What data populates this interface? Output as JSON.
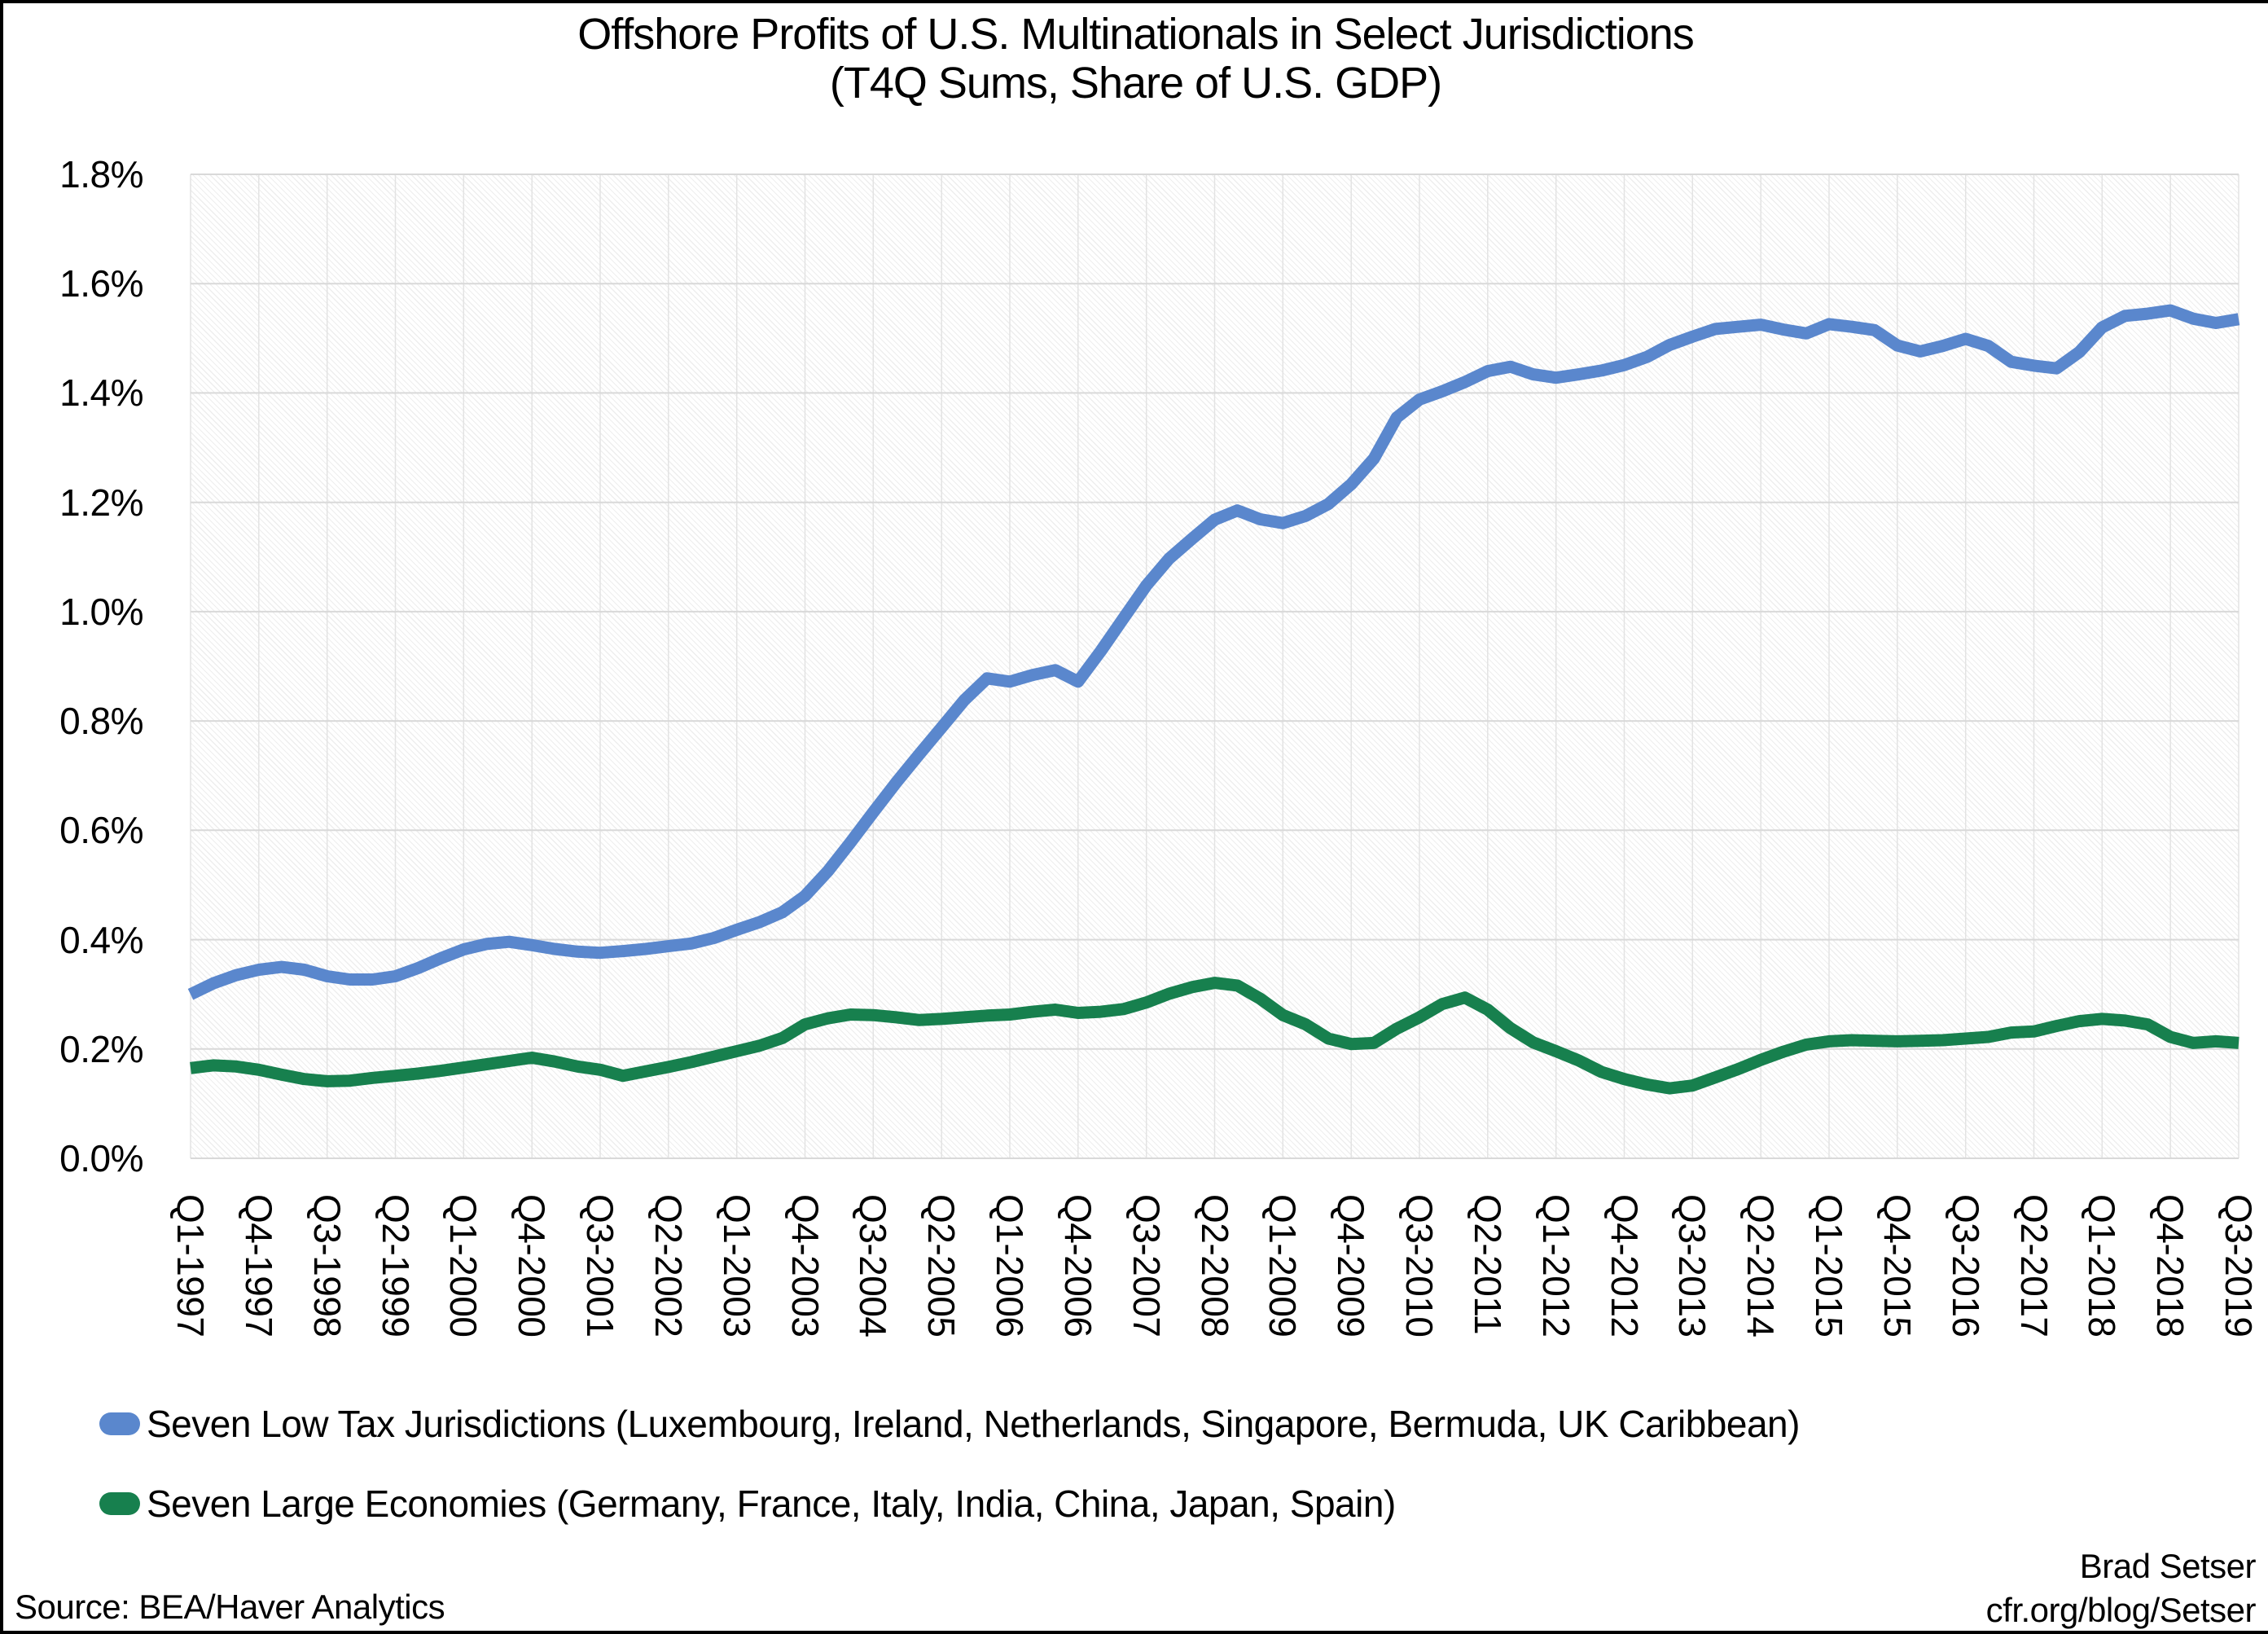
{
  "title": {
    "line1": "Offshore Profits of U.S. Multinationals in Select Jurisdictions",
    "line2": "(T4Q Sums, Share of U.S. GDP)"
  },
  "legend": {
    "items": [
      {
        "label": "Seven Low Tax Jurisdictions (Luxembourg, Ireland, Netherlands, Singapore, Bermuda, UK Caribbean)"
      },
      {
        "label": "Seven Large Economies (Germany, France, Italy, India, China, Japan, Spain)"
      }
    ]
  },
  "footer": {
    "source": "Source: BEA/Haver Analytics",
    "author": "Brad Setser",
    "url": "cfr.org/blog/Setser"
  },
  "chart_data": {
    "type": "line",
    "title": "Offshore Profits of U.S. Multinationals in Select Jurisdictions (T4Q Sums, Share of U.S. GDP)",
    "xlabel": "",
    "ylabel": "",
    "ylim": [
      0,
      1.8
    ],
    "y_tick_labels": [
      "1.8%",
      "1.6%",
      "1.4%",
      "1.2%",
      "1.0%",
      "0.8%",
      "0.6%",
      "0.4%",
      "0.2%",
      "0.0%"
    ],
    "grid": "light horizontal gridlines every 0.2%, faint vertical gridlines at each x tick",
    "legend_position": "bottom-left",
    "x_tick_every": 3,
    "x": [
      "Q1-1997",
      "Q2-1997",
      "Q3-1997",
      "Q4-1997",
      "Q1-1998",
      "Q2-1998",
      "Q3-1998",
      "Q4-1998",
      "Q1-1999",
      "Q2-1999",
      "Q3-1999",
      "Q4-1999",
      "Q1-2000",
      "Q2-2000",
      "Q3-2000",
      "Q4-2000",
      "Q1-2001",
      "Q2-2001",
      "Q3-2001",
      "Q4-2001",
      "Q1-2002",
      "Q2-2002",
      "Q3-2002",
      "Q4-2002",
      "Q1-2003",
      "Q2-2003",
      "Q3-2003",
      "Q4-2003",
      "Q1-2004",
      "Q2-2004",
      "Q3-2004",
      "Q4-2004",
      "Q1-2005",
      "Q2-2005",
      "Q3-2005",
      "Q4-2005",
      "Q1-2006",
      "Q2-2006",
      "Q3-2006",
      "Q4-2006",
      "Q1-2007",
      "Q2-2007",
      "Q3-2007",
      "Q4-2007",
      "Q1-2008",
      "Q2-2008",
      "Q3-2008",
      "Q4-2008",
      "Q1-2009",
      "Q2-2009",
      "Q3-2009",
      "Q4-2009",
      "Q1-2010",
      "Q2-2010",
      "Q3-2010",
      "Q4-2010",
      "Q1-2011",
      "Q2-2011",
      "Q3-2011",
      "Q4-2011",
      "Q1-2012",
      "Q2-2012",
      "Q3-2012",
      "Q4-2012",
      "Q1-2013",
      "Q2-2013",
      "Q3-2013",
      "Q4-2013",
      "Q1-2014",
      "Q2-2014",
      "Q3-2014",
      "Q4-2014",
      "Q1-2015",
      "Q2-2015",
      "Q3-2015",
      "Q4-2015",
      "Q1-2016",
      "Q2-2016",
      "Q3-2016",
      "Q4-2016",
      "Q1-2017",
      "Q2-2017",
      "Q3-2017",
      "Q4-2017",
      "Q1-2018",
      "Q2-2018",
      "Q3-2018",
      "Q4-2018",
      "Q1-2019",
      "Q2-2019",
      "Q3-2019"
    ],
    "series": [
      {
        "name": "Seven Low Tax Jurisdictions (Luxembourg, Ireland, Netherlands, Singapore, Bermuda, UK Caribbean)",
        "color": "#5A87CD",
        "values": [
          0.3,
          0.32,
          0.335,
          0.345,
          0.35,
          0.345,
          0.333,
          0.327,
          0.327,
          0.333,
          0.348,
          0.366,
          0.382,
          0.392,
          0.396,
          0.39,
          0.383,
          0.378,
          0.376,
          0.379,
          0.383,
          0.388,
          0.393,
          0.403,
          0.418,
          0.432,
          0.45,
          0.48,
          0.525,
          0.578,
          0.633,
          0.687,
          0.738,
          0.788,
          0.838,
          0.878,
          0.872,
          0.884,
          0.893,
          0.872,
          0.928,
          0.988,
          1.048,
          1.097,
          1.133,
          1.168,
          1.185,
          1.169,
          1.162,
          1.175,
          1.197,
          1.233,
          1.28,
          1.355,
          1.388,
          1.403,
          1.42,
          1.44,
          1.448,
          1.434,
          1.428,
          1.434,
          1.441,
          1.451,
          1.466,
          1.488,
          1.503,
          1.517,
          1.521,
          1.525,
          1.516,
          1.509,
          1.526,
          1.521,
          1.515,
          1.487,
          1.476,
          1.486,
          1.499,
          1.486,
          1.457,
          1.45,
          1.445,
          1.475,
          1.52,
          1.541,
          1.545,
          1.551,
          1.536,
          1.528,
          1.535
        ]
      },
      {
        "name": "Seven Large Economies (Germany, France, Italy, India, China, Japan, Spain)",
        "color": "#17804E",
        "values": [
          0.165,
          0.17,
          0.168,
          0.162,
          0.153,
          0.145,
          0.141,
          0.142,
          0.147,
          0.151,
          0.155,
          0.16,
          0.166,
          0.172,
          0.178,
          0.184,
          0.177,
          0.168,
          0.162,
          0.151,
          0.159,
          0.167,
          0.176,
          0.186,
          0.196,
          0.206,
          0.22,
          0.245,
          0.256,
          0.263,
          0.262,
          0.258,
          0.253,
          0.255,
          0.258,
          0.261,
          0.263,
          0.268,
          0.272,
          0.266,
          0.268,
          0.273,
          0.285,
          0.301,
          0.313,
          0.321,
          0.316,
          0.292,
          0.262,
          0.245,
          0.219,
          0.209,
          0.211,
          0.237,
          0.258,
          0.282,
          0.294,
          0.272,
          0.238,
          0.212,
          0.196,
          0.179,
          0.158,
          0.145,
          0.135,
          0.128,
          0.133,
          0.148,
          0.163,
          0.18,
          0.195,
          0.208,
          0.214,
          0.216,
          0.215,
          0.214,
          0.215,
          0.216,
          0.219,
          0.222,
          0.23,
          0.232,
          0.242,
          0.251,
          0.255,
          0.252,
          0.245,
          0.222,
          0.211,
          0.214,
          0.211
        ]
      }
    ]
  }
}
